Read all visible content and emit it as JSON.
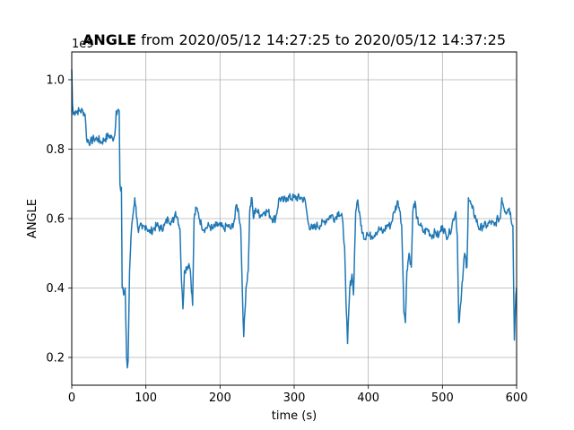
{
  "chart_data": {
    "type": "line",
    "title_bold": "ANGLE",
    "title_rest": " from 2020/05/12 14:27:25 to 2020/05/12 14:37:25",
    "xlabel": "time (s)",
    "ylabel": "ANGLE",
    "offset_text": "1e9",
    "xlim": [
      0,
      600
    ],
    "ylim": [
      0.12,
      1.08
    ],
    "xticks": [
      0,
      100,
      200,
      300,
      400,
      500,
      600
    ],
    "xtick_labels": [
      "0",
      "100",
      "200",
      "300",
      "400",
      "500",
      "600"
    ],
    "yticks": [
      0.2,
      0.4,
      0.6,
      0.8,
      1.0
    ],
    "ytick_labels": [
      "0.2",
      "0.4",
      "0.6",
      "0.8",
      "1.0"
    ],
    "grid": true,
    "line_color": "#1f77b4",
    "series": [
      {
        "x": [
          0,
          1,
          2,
          5,
          10,
          15,
          18,
          20,
          25,
          30,
          35,
          40,
          45,
          50,
          55,
          58,
          60,
          64,
          65,
          66,
          67,
          68,
          70,
          72,
          74,
          75,
          76,
          78,
          80,
          82,
          85,
          88,
          90,
          92,
          95,
          100,
          105,
          110,
          115,
          120,
          125,
          130,
          135,
          138,
          140,
          143,
          146,
          148,
          150,
          152,
          155,
          158,
          160,
          163,
          165,
          168,
          170,
          175,
          180,
          185,
          190,
          195,
          200,
          205,
          210,
          215,
          220,
          222,
          225,
          228,
          230,
          232,
          235,
          238,
          240,
          243,
          245,
          248,
          250,
          255,
          260,
          265,
          270,
          275,
          280,
          285,
          290,
          300,
          310,
          315,
          318,
          320,
          325,
          330,
          335,
          340,
          345,
          350,
          355,
          360,
          365,
          368,
          370,
          372,
          375,
          378,
          380,
          383,
          385,
          388,
          390,
          393,
          395,
          398,
          400,
          405,
          410,
          415,
          420,
          425,
          430,
          435,
          440,
          443,
          445,
          447,
          448,
          450,
          452,
          455,
          458,
          460,
          463,
          465,
          470,
          475,
          480,
          485,
          490,
          495,
          500,
          505,
          510,
          515,
          518,
          520,
          522,
          525,
          528,
          530,
          533,
          535,
          540,
          545,
          550,
          555,
          560,
          565,
          570,
          575,
          578,
          580,
          585,
          590,
          595,
          597,
          599,
          600
        ],
        "y": [
          1.03,
          0.93,
          0.9,
          0.91,
          0.91,
          0.91,
          0.9,
          0.83,
          0.82,
          0.83,
          0.83,
          0.82,
          0.83,
          0.84,
          0.83,
          0.84,
          0.91,
          0.91,
          0.7,
          0.68,
          0.69,
          0.4,
          0.38,
          0.4,
          0.2,
          0.17,
          0.19,
          0.45,
          0.55,
          0.6,
          0.66,
          0.6,
          0.56,
          0.58,
          0.57,
          0.58,
          0.56,
          0.57,
          0.58,
          0.57,
          0.58,
          0.6,
          0.59,
          0.6,
          0.62,
          0.6,
          0.57,
          0.42,
          0.34,
          0.45,
          0.46,
          0.47,
          0.45,
          0.35,
          0.6,
          0.63,
          0.62,
          0.58,
          0.57,
          0.58,
          0.57,
          0.58,
          0.58,
          0.57,
          0.58,
          0.57,
          0.6,
          0.64,
          0.62,
          0.57,
          0.4,
          0.26,
          0.4,
          0.45,
          0.62,
          0.66,
          0.6,
          0.63,
          0.62,
          0.61,
          0.62,
          0.62,
          0.6,
          0.6,
          0.66,
          0.65,
          0.66,
          0.66,
          0.66,
          0.65,
          0.6,
          0.58,
          0.57,
          0.58,
          0.58,
          0.59,
          0.6,
          0.61,
          0.6,
          0.62,
          0.6,
          0.52,
          0.35,
          0.24,
          0.4,
          0.44,
          0.38,
          0.62,
          0.65,
          0.62,
          0.58,
          0.56,
          0.54,
          0.56,
          0.55,
          0.55,
          0.56,
          0.57,
          0.56,
          0.58,
          0.58,
          0.62,
          0.65,
          0.62,
          0.58,
          0.42,
          0.33,
          0.3,
          0.45,
          0.5,
          0.46,
          0.62,
          0.65,
          0.6,
          0.58,
          0.56,
          0.57,
          0.55,
          0.56,
          0.55,
          0.58,
          0.55,
          0.56,
          0.6,
          0.62,
          0.55,
          0.3,
          0.36,
          0.45,
          0.5,
          0.46,
          0.66,
          0.63,
          0.6,
          0.57,
          0.58,
          0.58,
          0.59,
          0.58,
          0.6,
          0.6,
          0.66,
          0.62,
          0.63,
          0.58,
          0.25,
          0.38,
          0.4
        ]
      }
    ]
  }
}
